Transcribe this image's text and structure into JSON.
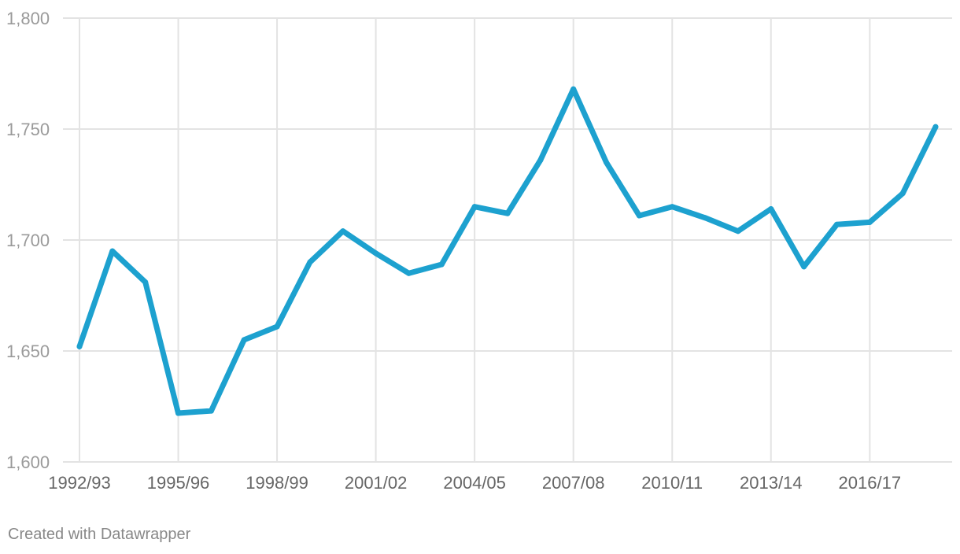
{
  "footer": {
    "credit": "Created with Datawrapper"
  },
  "colors": {
    "line": "#1da1cf",
    "grid": "#e3e3e3",
    "ytick": "#9a9a9a",
    "xtick": "#666666"
  },
  "chart_data": {
    "type": "line",
    "title": "",
    "xlabel": "",
    "ylabel": "",
    "ylim": [
      1600,
      1800
    ],
    "yticks": [
      1600,
      1650,
      1700,
      1750,
      1800
    ],
    "ytick_labels": [
      "1,600",
      "1,650",
      "1,700",
      "1,750",
      "1,800"
    ],
    "xtick_labels": [
      "1992/93",
      "1995/96",
      "1998/99",
      "2001/02",
      "2004/05",
      "2007/08",
      "2010/11",
      "2013/14",
      "2016/17"
    ],
    "xtick_indices": [
      0,
      3,
      6,
      9,
      12,
      15,
      18,
      21,
      24
    ],
    "grid": true,
    "legend": "none",
    "series": [
      {
        "color": "#1da1cf",
        "x": [
          "1992/93",
          "1993/94",
          "1994/95",
          "1995/96",
          "1996/97",
          "1997/98",
          "1998/99",
          "1999/00",
          "2000/01",
          "2001/02",
          "2002/03",
          "2003/04",
          "2004/05",
          "2005/06",
          "2006/07",
          "2007/08",
          "2008/09",
          "2009/10",
          "2010/11",
          "2011/12",
          "2012/13",
          "2013/14",
          "2014/15",
          "2015/16",
          "2016/17",
          "2017/18",
          "2018/19"
        ],
        "values": [
          1652,
          1695,
          1681,
          1622,
          1623,
          1655,
          1661,
          1690,
          1704,
          1694,
          1685,
          1689,
          1715,
          1712,
          1736,
          1768,
          1735,
          1711,
          1715,
          1710,
          1704,
          1714,
          1688,
          1707,
          1708,
          1721,
          1751
        ]
      }
    ]
  }
}
